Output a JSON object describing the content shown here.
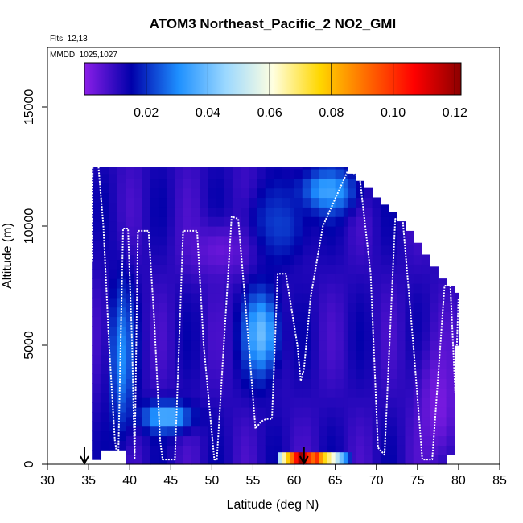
{
  "chart_data": {
    "type": "heatmap",
    "title": "ATOM3 Northeast_Pacific_2 NO2_GMI",
    "subtitle_lines": [
      "Flts: 12,13",
      "MMDD: 1025,1027"
    ],
    "xlabel": "Latitude (deg N)",
    "ylabel": "Altitude (m)",
    "xlim": [
      30,
      85
    ],
    "ylim": [
      0,
      17500
    ],
    "x_ticks": [
      30,
      35,
      40,
      45,
      50,
      55,
      60,
      65,
      70,
      75,
      80,
      85
    ],
    "y_ticks": [
      0,
      5000,
      10000,
      15000
    ],
    "colorbar": {
      "range": [
        0.0,
        0.122
      ],
      "ticks": [
        0.02,
        0.04,
        0.06,
        0.08,
        0.1,
        0.12
      ],
      "tick_labels": [
        "0.02",
        "0.04",
        "0.06",
        "0.08",
        "0.10",
        "0.12"
      ],
      "colors": [
        "#8b1ee8",
        "#0000aa",
        "#1e90ff",
        "#9bd8ff",
        "#ffffe0",
        "#ffd700",
        "#ff6a00",
        "#ff0000",
        "#8b0000"
      ]
    },
    "grid": false,
    "columns": [
      {
        "x": [
          35.4,
          36.5
        ],
        "top": 12500,
        "bottom": 200
      },
      {
        "x": [
          36.5,
          39.5
        ],
        "top": 12500,
        "bottom": 600
      },
      {
        "x": [
          39.5,
          46.5
        ],
        "top": 12500,
        "bottom": 0
      },
      {
        "x": [
          46.5,
          60
        ],
        "top": 12500,
        "bottom": 0
      },
      {
        "x": [
          60,
          66.5
        ],
        "top": 12500,
        "bottom": 0
      },
      {
        "x": [
          66.5,
          67.5
        ],
        "top": 12200,
        "bottom": 0
      },
      {
        "x": [
          67.5,
          68.5
        ],
        "top": 11900,
        "bottom": 0
      },
      {
        "x": [
          68.5,
          69.5
        ],
        "top": 11600,
        "bottom": 0
      },
      {
        "x": [
          69.5,
          70.5
        ],
        "top": 11200,
        "bottom": 0
      },
      {
        "x": [
          70.5,
          71.5
        ],
        "top": 10900,
        "bottom": 0
      },
      {
        "x": [
          71.5,
          72.5
        ],
        "top": 10600,
        "bottom": 0
      },
      {
        "x": [
          72.5,
          73.5
        ],
        "top": 10200,
        "bottom": 0
      },
      {
        "x": [
          73.5,
          74.5
        ],
        "top": 9800,
        "bottom": 0
      },
      {
        "x": [
          74.5,
          75.5
        ],
        "top": 9300,
        "bottom": 0
      },
      {
        "x": [
          75.5,
          76.5
        ],
        "top": 8800,
        "bottom": 0
      },
      {
        "x": [
          76.5,
          77.5
        ],
        "top": 8300,
        "bottom": 0
      },
      {
        "x": [
          77.5,
          78.5
        ],
        "top": 7800,
        "bottom": 0
      },
      {
        "x": [
          78.5,
          79.5
        ],
        "top": 7500,
        "bottom": 400
      },
      {
        "x": [
          79.5,
          80
        ],
        "top": 7200,
        "bottom": 5000
      }
    ],
    "field_features": [
      {
        "x": 56,
        "y": 5500,
        "sx": 2.0,
        "sy": 1800,
        "value": 0.04
      },
      {
        "x": 44.5,
        "y": 2000,
        "sx": 3.0,
        "sy": 600,
        "value": 0.038
      },
      {
        "x": 39,
        "y": 4500,
        "sx": 1.5,
        "sy": 3000,
        "value": 0.03
      },
      {
        "x": 64,
        "y": 11500,
        "sx": 3.5,
        "sy": 900,
        "value": 0.035
      },
      {
        "x": 58,
        "y": 10000,
        "sx": 4.0,
        "sy": 1500,
        "value": 0.022
      },
      {
        "x": 51,
        "y": 9000,
        "sx": 4.0,
        "sy": 1200,
        "value": 0.004
      },
      {
        "x": 77.5,
        "y": 2500,
        "sx": 2.5,
        "sy": 2500,
        "value": 0.002
      }
    ],
    "surface_band": {
      "altitude": [
        0,
        500
      ],
      "cells": [
        {
          "x": 58.0,
          "value": 0.05
        },
        {
          "x": 58.5,
          "value": 0.065
        },
        {
          "x": 59.0,
          "value": 0.078
        },
        {
          "x": 59.5,
          "value": 0.09
        },
        {
          "x": 60.0,
          "value": 0.105
        },
        {
          "x": 60.5,
          "value": 0.12
        },
        {
          "x": 61.0,
          "value": 0.11
        },
        {
          "x": 61.5,
          "value": 0.1
        },
        {
          "x": 62.0,
          "value": 0.092
        },
        {
          "x": 62.5,
          "value": 0.1
        },
        {
          "x": 63.0,
          "value": 0.085
        },
        {
          "x": 63.5,
          "value": 0.075
        },
        {
          "x": 64.0,
          "value": 0.068
        },
        {
          "x": 64.5,
          "value": 0.06
        },
        {
          "x": 65.0,
          "value": 0.05
        },
        {
          "x": 65.5,
          "value": 0.04
        },
        {
          "x": 66.0,
          "value": 0.03
        },
        {
          "x": 66.5,
          "value": 0.02
        }
      ]
    },
    "flight_track": {
      "color": "#ffffff",
      "x": [
        35.4,
        35.5,
        36.2,
        36.8,
        37.5,
        38.2,
        38.6,
        39.2,
        39.8,
        40.3,
        40.6,
        41.0,
        42.3,
        43.0,
        43.7,
        44.0,
        45.5,
        46.5,
        48.2,
        49.0,
        50.3,
        50.6,
        52.4,
        53.2,
        54.5,
        55.3,
        56.0,
        56.6,
        57.3,
        58.0,
        59.0,
        60.4,
        60.8,
        61.2,
        62.0,
        63.5,
        66.5,
        67.0,
        68.0,
        69.3,
        70.2,
        71.0,
        72.3,
        73.2,
        74.5,
        75.6,
        76.4,
        76.8,
        78.3,
        79.0,
        79.6,
        80.0
      ],
      "y": [
        8500,
        12500,
        12500,
        10000,
        5000,
        1000,
        100,
        9900,
        9900,
        5000,
        200,
        9800,
        9800,
        6000,
        1000,
        200,
        200,
        9800,
        9800,
        5000,
        200,
        200,
        10400,
        10300,
        5000,
        1500,
        1800,
        1900,
        1900,
        8000,
        8000,
        5000,
        3500,
        4000,
        7000,
        10000,
        12300,
        12300,
        12000,
        8000,
        700,
        400,
        10300,
        10300,
        5000,
        200,
        200,
        200,
        7500,
        7500,
        3000,
        7000
      ]
    },
    "arrows": [
      34.5,
      61.2
    ]
  }
}
